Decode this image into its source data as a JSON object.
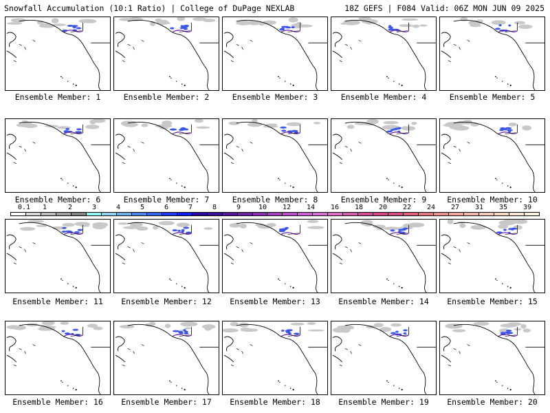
{
  "header": {
    "title": "Snowfall Accumulation (10:1 Ratio) | College of DuPage NEXLAB",
    "run_info": "18Z GEFS | F084 Valid: 06Z MON JUN 09 2025"
  },
  "members": [
    {
      "label": "Ensemble Member: 1"
    },
    {
      "label": "Ensemble Member: 2"
    },
    {
      "label": "Ensemble Member: 3"
    },
    {
      "label": "Ensemble Member: 4"
    },
    {
      "label": "Ensemble Member: 5"
    },
    {
      "label": "Ensemble Member: 6"
    },
    {
      "label": "Ensemble Member: 7"
    },
    {
      "label": "Ensemble Member: 8"
    },
    {
      "label": "Ensemble Member: 9"
    },
    {
      "label": "Ensemble Member: 10"
    },
    {
      "label": "Ensemble Member: 11"
    },
    {
      "label": "Ensemble Member: 12"
    },
    {
      "label": "Ensemble Member: 13"
    },
    {
      "label": "Ensemble Member: 14"
    },
    {
      "label": "Ensemble Member: 15"
    },
    {
      "label": "Ensemble Member: 16"
    },
    {
      "label": "Ensemble Member: 17"
    },
    {
      "label": "Ensemble Member: 18"
    },
    {
      "label": "Ensemble Member: 19"
    },
    {
      "label": "Ensemble Member: 20"
    }
  ],
  "legend": {
    "labels": [
      "0.1",
      "1",
      "2",
      "3",
      "4",
      "5",
      "6",
      "7",
      "8",
      "9",
      "10",
      "12",
      "14",
      "16",
      "18",
      "20",
      "22",
      "24",
      "27",
      "31",
      "35",
      "39"
    ],
    "colors": [
      "#ffffff",
      "#d9d9d9",
      "#bdbdbd",
      "#a0a0a0",
      "#858585",
      "#8ff5f5",
      "#8cd2f5",
      "#6ab0f0",
      "#4b88ee",
      "#3366ee",
      "#1c3df0",
      "#0a1ef5",
      "#2a0a9e",
      "#3c0f9a",
      "#55179e",
      "#6e20a8",
      "#8a2cb5",
      "#a63bc4",
      "#bf4bd0",
      "#d35cd8",
      "#de6bd6",
      "#e06cc5",
      "#da5ab0",
      "#d44b98",
      "#d3468a",
      "#d84d80",
      "#e0607a",
      "#e87880",
      "#f08f8c",
      "#f4a59c",
      "#f7baa8",
      "#f9cbb4",
      "#fbdcc2",
      "#fde8d2",
      "#fef3e2"
    ]
  }
}
